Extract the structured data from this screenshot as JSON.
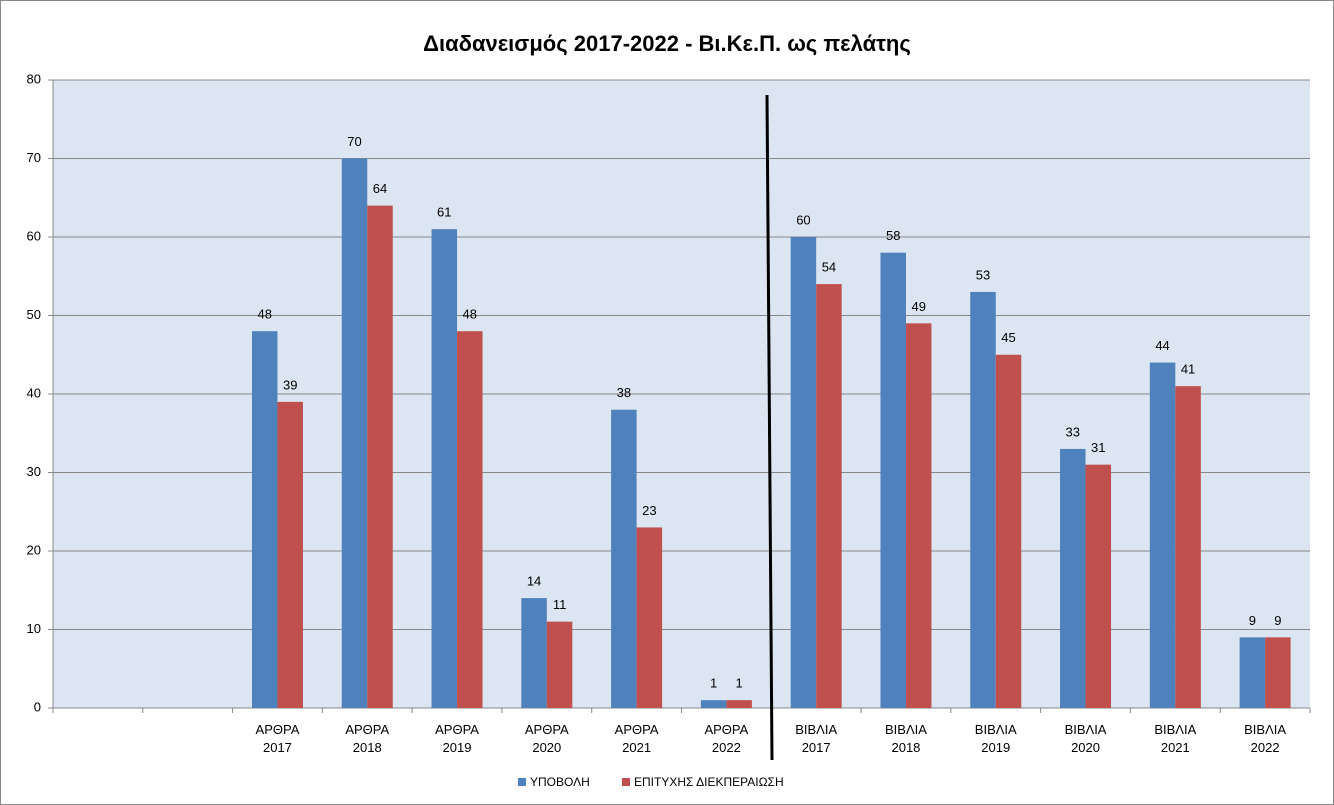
{
  "chart_data": {
    "type": "bar",
    "title": "Διαδανεισμός 2017-2022 - Βι.Κε.Π. ως πελάτης",
    "categories": [
      null,
      null,
      "ΑΡΘΡΑ 2017",
      "ΑΡΘΡΑ 2018",
      "ΑΡΘΡΑ 2019",
      "ΑΡΘΡΑ 2020",
      "ΑΡΘΡΑ 2021",
      "ΑΡΘΡΑ 2022",
      "ΒΙΒΛΙΑ 2017",
      "ΒΙΒΛΙΑ 2018",
      "ΒΙΒΛΙΑ 2019",
      "ΒΙΒΛΙΑ 2020",
      "ΒΙΒΛΙΑ 2021",
      "ΒΙΒΛΙΑ 2022"
    ],
    "series": [
      {
        "name": "ΥΠΟΒΟΛΗ",
        "color": "#4f81bd",
        "values": [
          null,
          null,
          48,
          70,
          61,
          14,
          38,
          1,
          60,
          58,
          53,
          33,
          44,
          9
        ]
      },
      {
        "name": "ΕΠΙΤΥΧΗΣ ΔΙΕΚΠΕΡΑΙΩΣΗ",
        "color": "#c0504d",
        "values": [
          null,
          null,
          39,
          64,
          48,
          11,
          23,
          1,
          54,
          49,
          45,
          31,
          41,
          9
        ]
      }
    ],
    "ylim": [
      0,
      80
    ],
    "yticks": [
      0,
      10,
      20,
      30,
      40,
      50,
      60,
      70,
      80
    ],
    "grid": true,
    "legend": "bottom"
  }
}
